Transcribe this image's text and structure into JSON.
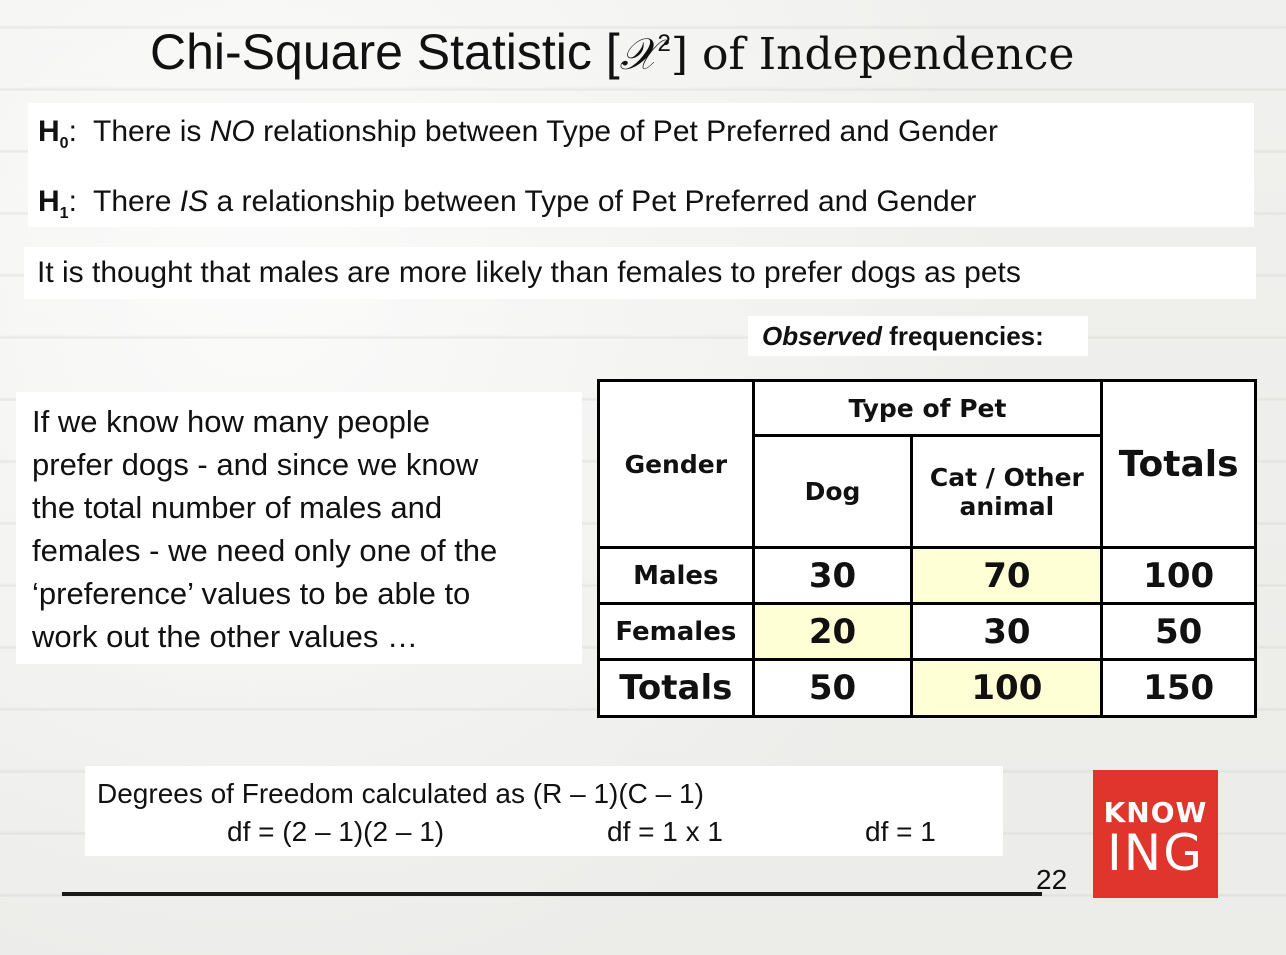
{
  "title": {
    "part1": "Chi-Square Statistic [",
    "symbol": "𝒳",
    "sup": "2",
    "part2": "]",
    "part3": " of Independence"
  },
  "hypotheses": {
    "h0": {
      "label": "H",
      "sub": "0",
      "colon": ":",
      "pre": "  There is ",
      "emph": "NO",
      "post": " relationship between Type of Pet Preferred and Gender"
    },
    "h1": {
      "label": "H",
      "sub": "1",
      "colon": ":",
      "pre": "  There ",
      "emph": "IS",
      "post": " a relationship between Type of Pet Preferred and Gender"
    }
  },
  "thought": "It is thought that males are more likely than females to prefer dogs as pets",
  "observed_caption": {
    "emph": "Observed",
    "rest": " frequencies:"
  },
  "explanation": [
    "If we know how many people",
    "prefer dogs - and since we know",
    "the total number of males and",
    "females - we need only one of the",
    "‘preference’ values to be able to",
    "work out the other values …"
  ],
  "table": {
    "gender_header": "Gender",
    "type_header": "Type of Pet",
    "totals_header": "Totals",
    "dog_header": "Dog",
    "cat_header_line1": "Cat / Other",
    "cat_header_line2": "animal",
    "rows": [
      {
        "label": "Males",
        "dog": "30",
        "cat": "70",
        "total": "100"
      },
      {
        "label": "Females",
        "dog": "20",
        "cat": "30",
        "total": "50"
      },
      {
        "label": "Totals",
        "dog": "50",
        "cat": "100",
        "total": "150"
      }
    ],
    "highlight_color": "#ffffd6"
  },
  "degrees_of_freedom": {
    "title": "Degrees of Freedom calculated as (R – 1)(C – 1)",
    "step1": "df = (2 – 1)(2 – 1)",
    "step2": "df = 1 x 1",
    "step3": "df = 1"
  },
  "page_number": "22",
  "logo": {
    "top": "KNOW",
    "bottom": "ING",
    "color": "#e0352d"
  }
}
